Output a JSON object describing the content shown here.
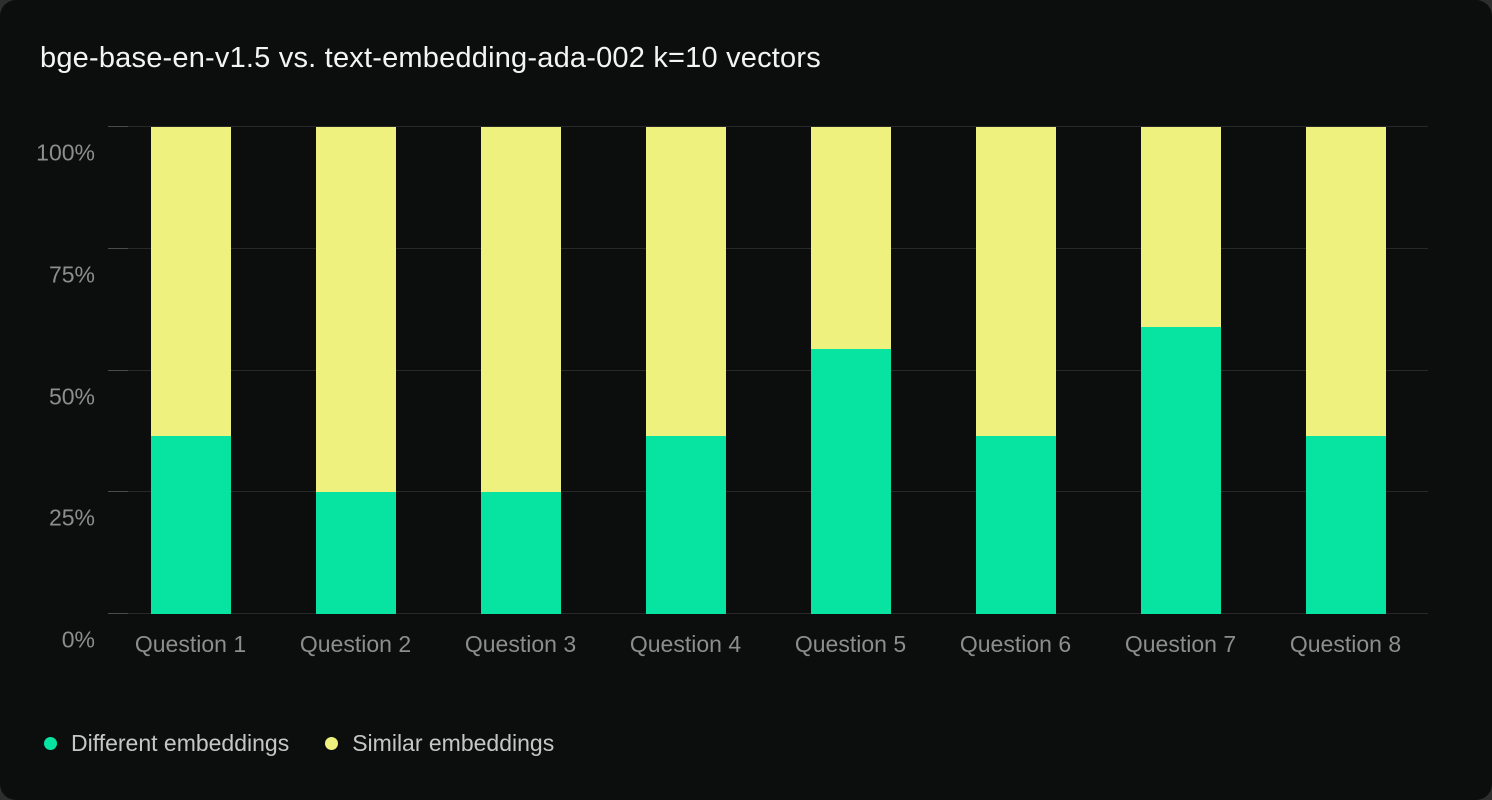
{
  "page": {
    "outer_background": "#2e2e2e",
    "card_background": "#0c0e0d",
    "gridline_color": "#282828",
    "tick_color": "#4b4b4b",
    "axis_label_color": "#8d8d8d",
    "title_color": "#f4f4f4",
    "legend_text_color": "#c6c6c6"
  },
  "title": "bge-base-en-v1.5 vs. text-embedding-ada-002 k=10 vectors",
  "chart_data": {
    "type": "bar",
    "stacked": true,
    "orientation": "vertical",
    "categories": [
      "Question 1",
      "Question 2",
      "Question 3",
      "Question 4",
      "Question 5",
      "Question 6",
      "Question 7",
      "Question 8"
    ],
    "series": [
      {
        "name": "Different embeddings",
        "color": "#07e4a1",
        "values": [
          36.5,
          25,
          25,
          36.5,
          54.5,
          36.5,
          59,
          36.5
        ]
      },
      {
        "name": "Similar embeddings",
        "color": "#eef17d",
        "values": [
          63.5,
          75,
          75,
          63.5,
          45.5,
          63.5,
          41,
          63.5
        ]
      }
    ],
    "ylabel": "",
    "xlabel": "",
    "ylim": [
      0,
      100
    ],
    "y_ticks": [
      {
        "value": 0,
        "label": "0%"
      },
      {
        "value": 25,
        "label": "25%"
      },
      {
        "value": 50,
        "label": "50%"
      },
      {
        "value": 75,
        "label": "75%"
      },
      {
        "value": 100,
        "label": "100%"
      }
    ],
    "grid": "horizontal",
    "legend_position": "bottom-left"
  },
  "legend": {
    "items": [
      {
        "label": "Different embeddings",
        "color": "#07e4a1"
      },
      {
        "label": "Similar embeddings",
        "color": "#eef17d"
      }
    ]
  }
}
